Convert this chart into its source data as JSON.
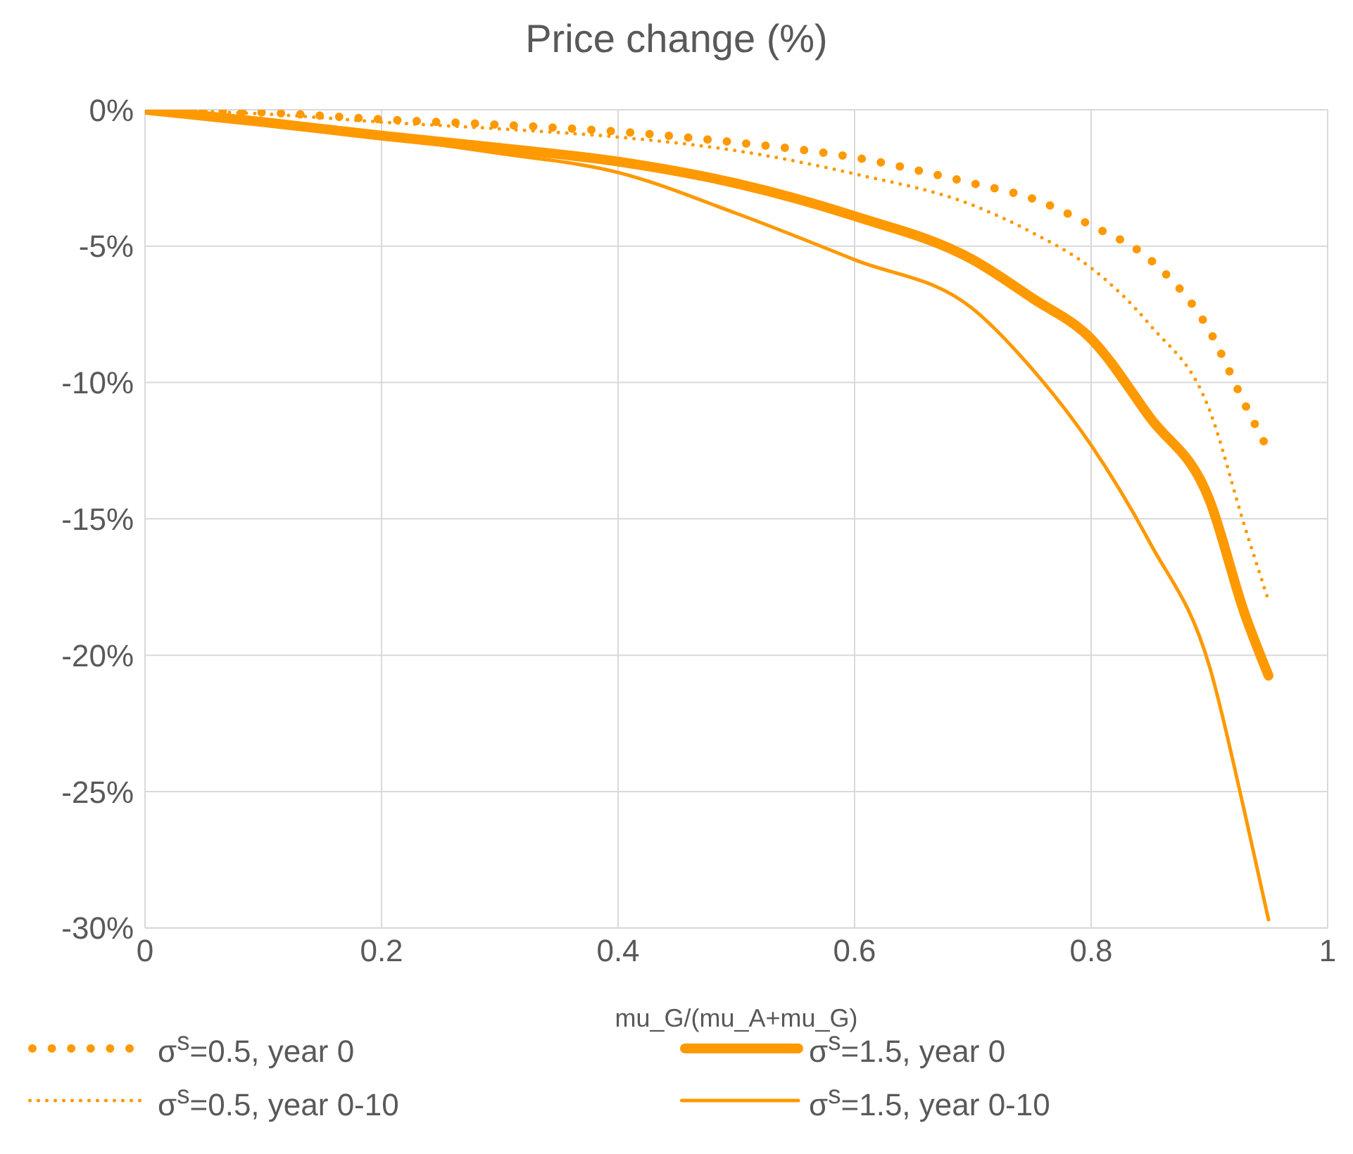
{
  "chart_data": {
    "type": "line",
    "title": "Price change (%)",
    "xlabel": "mu_G/(mu_A+mu_G)",
    "x": [
      0,
      0.1,
      0.2,
      0.3,
      0.4,
      0.5,
      0.6,
      0.7,
      0.75,
      0.8,
      0.85,
      0.9,
      0.93,
      0.95
    ],
    "series": [
      {
        "name": "σ$^{s}$=0.5, year 0",
        "color": "#ff9900",
        "line_style": "dotted",
        "values": [
          0,
          -0.1,
          -0.35,
          -0.55,
          -0.8,
          -1.2,
          -1.75,
          -2.7,
          -3.25,
          -4.24,
          -5.5,
          -8.1,
          -10.8,
          -12.5
        ]
      },
      {
        "name": "σ$^{s}$=1.5, year 0",
        "color": "#ff9900",
        "line_style": "solid",
        "values": [
          0,
          -0.45,
          -0.95,
          -1.4,
          -1.9,
          -2.7,
          -3.9,
          -5.5,
          -6.9,
          -8.4,
          -11.3,
          -14.3,
          -18.5,
          -20.75
        ]
      },
      {
        "name": "σ$^{s}$=0.5, year 0-10",
        "color": "#ff9900",
        "line_style": "dotted",
        "values": [
          0,
          -0.15,
          -0.45,
          -0.7,
          -1.0,
          -1.5,
          -2.35,
          -3.5,
          -4.5,
          -5.8,
          -7.9,
          -11.0,
          -15.3,
          -18.0
        ]
      },
      {
        "name": "σ$^{s}$=1.5, year 0-10",
        "color": "#ff9900",
        "line_style": "solid",
        "values": [
          0,
          -0.5,
          -1.0,
          -1.6,
          -2.3,
          -3.8,
          -5.5,
          -7.3,
          -9.5,
          -12.3,
          -15.9,
          -20.4,
          -25.8,
          -29.7
        ]
      }
    ],
    "xlim": [
      0,
      1
    ],
    "xticks": [
      0,
      0.2,
      0.4,
      0.6,
      0.8,
      1
    ],
    "ylim": [
      -30,
      0
    ],
    "yticks": [
      {
        "value": 0,
        "label": "0%"
      },
      {
        "value": -5,
        "label": "-5%"
      },
      {
        "value": -10,
        "label": "-10%"
      },
      {
        "value": -15,
        "label": "-15%"
      },
      {
        "value": -20,
        "label": "-20%"
      },
      {
        "value": -25,
        "label": "-25%"
      },
      {
        "value": -30,
        "label": "-30%"
      }
    ],
    "grid": true,
    "legend": "bottom",
    "marker": "none"
  }
}
